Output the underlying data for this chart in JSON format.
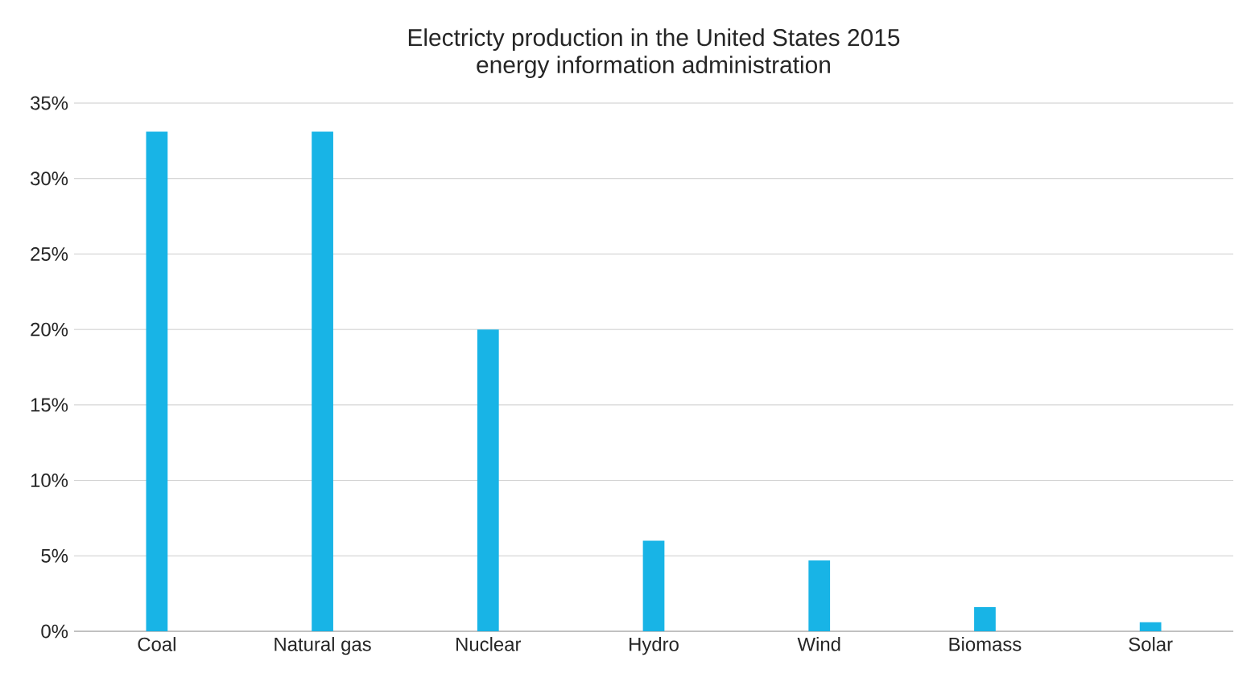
{
  "chart_data": {
    "type": "bar",
    "title": "Electricty production in the United States 2015",
    "subtitle": "energy information administration",
    "categories": [
      "Coal",
      "Natural gas",
      "Nuclear",
      "Hydro",
      "Wind",
      "Biomass",
      "Solar"
    ],
    "values": [
      33.1,
      33.1,
      20,
      6,
      4.7,
      1.6,
      0.6
    ],
    "color": "#18b4e6",
    "ylim": [
      0,
      35
    ],
    "yticks": [
      {
        "value": 0,
        "label": "0%"
      },
      {
        "value": 5,
        "label": "5%"
      },
      {
        "value": 10,
        "label": "10%"
      },
      {
        "value": 15,
        "label": "15%"
      },
      {
        "value": 20,
        "label": "20%"
      },
      {
        "value": 25,
        "label": "25%"
      },
      {
        "value": 30,
        "label": "30%"
      },
      {
        "value": 35,
        "label": "35%"
      }
    ],
    "grid": "y"
  }
}
